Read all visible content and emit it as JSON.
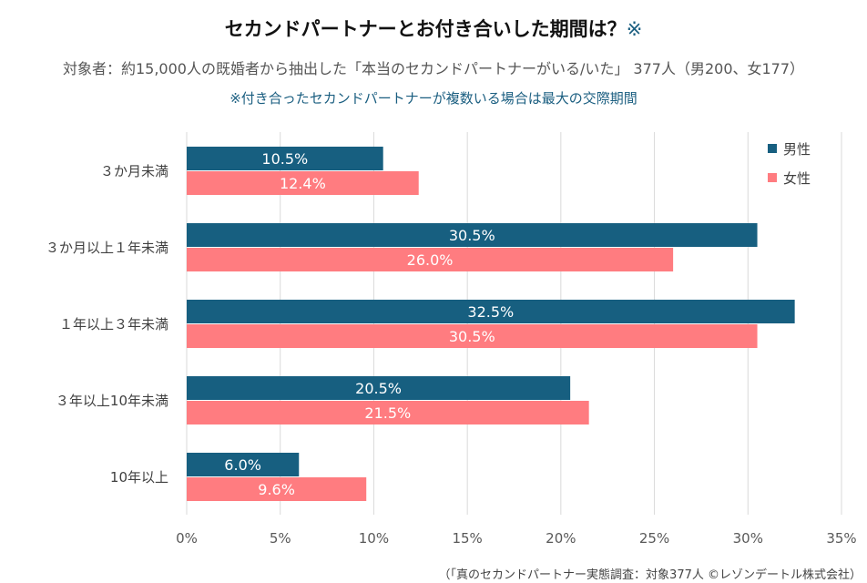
{
  "chart_data": {
    "type": "bar",
    "orientation": "horizontal",
    "title": "セカンドパートナーとお付き合いした期間は？",
    "title_mark": "※",
    "subtitle": "対象者：約15,000人の既婚者から抽出した「本当のセカンドパートナーがいる/いた」 377人（男200、女177）",
    "note": "※付き合ったセカンドパートナーが複数いる場合は最大の交際期間",
    "categories": [
      "３か月未満",
      "３か月以上１年未満",
      "１年以上３年未満",
      "３年以上10年未満",
      "10年以上"
    ],
    "series": [
      {
        "name": "男性",
        "color": "#175f80",
        "values": [
          10.5,
          30.5,
          32.5,
          20.5,
          6.0
        ],
        "labels": [
          "10.5%",
          "30.5%",
          "32.5%",
          "20.5%",
          "6.0%"
        ]
      },
      {
        "name": "女性",
        "color": "#ff7c80",
        "values": [
          12.4,
          26.0,
          30.5,
          21.5,
          9.6
        ],
        "labels": [
          "12.4%",
          "26.0%",
          "30.5%",
          "21.5%",
          "9.6%"
        ]
      }
    ],
    "xlim": [
      0,
      35
    ],
    "xticks": [
      "0%",
      "5%",
      "10%",
      "15%",
      "20%",
      "25%",
      "30%",
      "35%"
    ],
    "grid": true,
    "legend": "top-right",
    "source": "（「真のセカンドパートナー実態調査：対象377人 ©レゾンデートル株式会社）"
  }
}
